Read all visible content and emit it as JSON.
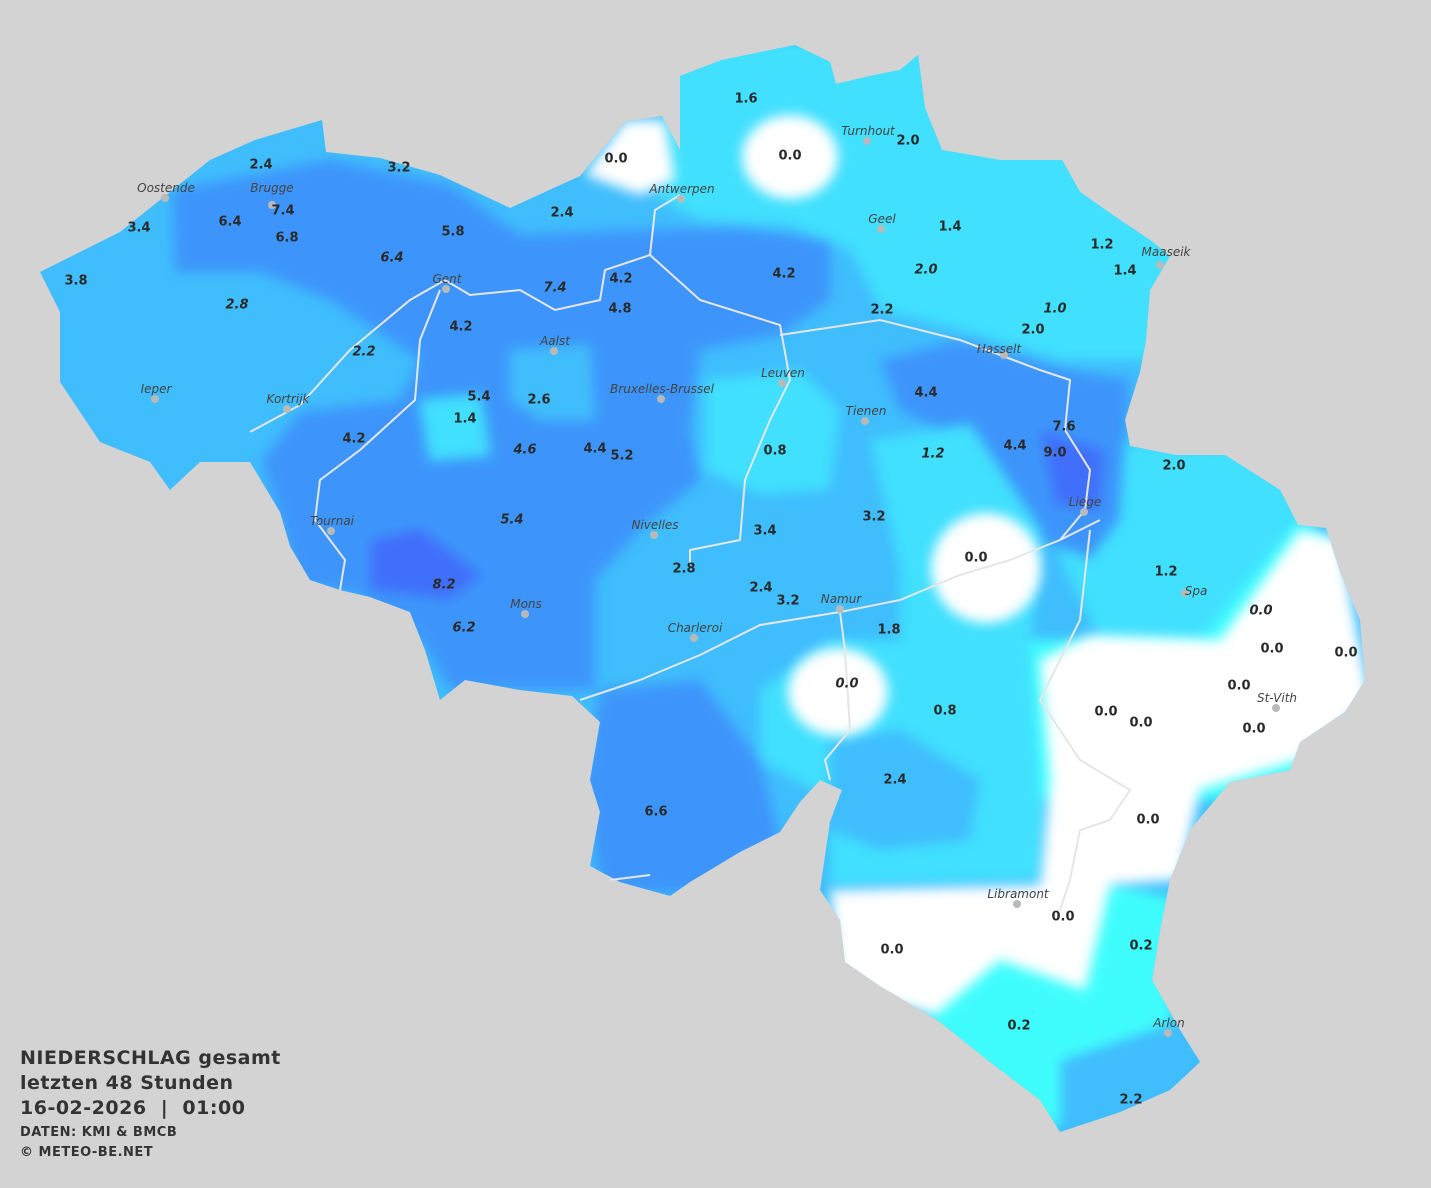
{
  "legend": {
    "title": "NIEDERSCHLAG gesamt",
    "period": "letzten 48 Stunden",
    "datetime": "16-02-2026  |  01:00",
    "source": "DATEN: KMI & BMCB",
    "copyright": "© METEO-BE.NET"
  },
  "colors": {
    "background": "#d3d3d3",
    "zero": "#ffffff",
    "very_low": "#40fdfd",
    "low": "#40e0fe",
    "medium": "#3fbdfd",
    "high": "#3d95fb",
    "very_high": "#4070fb"
  },
  "cities": [
    "Oostende",
    "Brugge",
    "Antwerpen",
    "Turnhout",
    "Geel",
    "Maaseik",
    "Gent",
    "Aalst",
    "Hasselt",
    "Leuven",
    "Bruxelles-Brussel",
    "Ieper",
    "Kortrijk",
    "Tienen",
    "Liege",
    "Tournai",
    "Nivelles",
    "Spa",
    "Namur",
    "Mons",
    "Charleroi",
    "St-Vith",
    "Libramont",
    "Arlon"
  ],
  "values": [
    "1.6",
    "0.0",
    "0.0",
    "2.0",
    "2.4",
    "3.2",
    "7.4",
    "6.4",
    "6.8",
    "3.4",
    "5.8",
    "2.4",
    "6.4",
    "3.8",
    "2.8",
    "7.4",
    "4.2",
    "4.8",
    "4.2",
    "1.4",
    "1.2",
    "1.4",
    "2.0",
    "1.0",
    "2.2",
    "2.0",
    "4.2",
    "2.2",
    "5.4",
    "2.6",
    "1.4",
    "4.2",
    "4.6",
    "4.4",
    "5.2",
    "0.8",
    "4.4",
    "1.2",
    "7.6",
    "4.4",
    "9.0",
    "2.0",
    "5.4",
    "3.4",
    "3.2",
    "0.0",
    "2.8",
    "8.2",
    "2.4",
    "3.2",
    "6.2",
    "1.2",
    "1.8",
    "0.0",
    "0.0",
    "0.0",
    "0.0",
    "0.0",
    "0.8",
    "0.0",
    "0.0",
    "0.0",
    "2.4",
    "6.6",
    "0.0",
    "0.0",
    "0.0",
    "0.2",
    "0.2",
    "2.2"
  ]
}
